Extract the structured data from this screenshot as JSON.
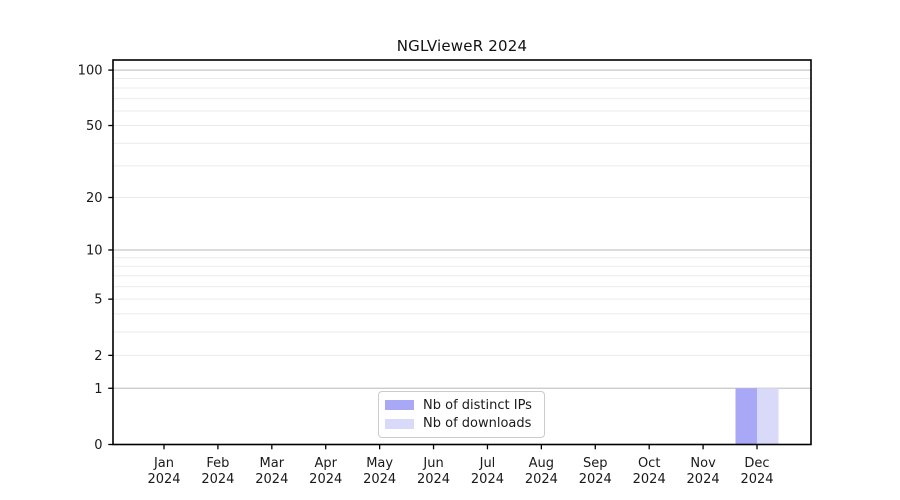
{
  "chart_data": {
    "type": "bar",
    "title": "NGLVieweR 2024",
    "categories": [
      "Jan 2024",
      "Feb 2024",
      "Mar 2024",
      "Apr 2024",
      "May 2024",
      "Jun 2024",
      "Jul 2024",
      "Aug 2024",
      "Sep 2024",
      "Oct 2024",
      "Nov 2024",
      "Dec 2024"
    ],
    "x_tick_labels": [
      {
        "month": "Jan",
        "year": "2024"
      },
      {
        "month": "Feb",
        "year": "2024"
      },
      {
        "month": "Mar",
        "year": "2024"
      },
      {
        "month": "Apr",
        "year": "2024"
      },
      {
        "month": "May",
        "year": "2024"
      },
      {
        "month": "Jun",
        "year": "2024"
      },
      {
        "month": "Jul",
        "year": "2024"
      },
      {
        "month": "Aug",
        "year": "2024"
      },
      {
        "month": "Sep",
        "year": "2024"
      },
      {
        "month": "Oct",
        "year": "2024"
      },
      {
        "month": "Nov",
        "year": "2024"
      },
      {
        "month": "Dec",
        "year": "2024"
      }
    ],
    "series": [
      {
        "name": "Nb of distinct IPs",
        "color": "#a8a8f6",
        "values": [
          0,
          0,
          0,
          0,
          0,
          0,
          0,
          0,
          0,
          0,
          0,
          1
        ]
      },
      {
        "name": "Nb of downloads",
        "color": "#d9d9f9",
        "values": [
          0,
          0,
          0,
          0,
          0,
          0,
          0,
          0,
          0,
          0,
          0,
          1
        ]
      }
    ],
    "yscale": "log1p",
    "ylim": [
      0,
      113
    ],
    "xlabel": "",
    "ylabel": "",
    "y_tick_labels": [
      "0",
      "1",
      "2",
      "5",
      "10",
      "20",
      "50",
      "100"
    ],
    "y_tick_values": [
      0,
      1,
      2,
      5,
      10,
      20,
      50,
      100
    ],
    "y_gridlines_decade": [
      1,
      10,
      100
    ],
    "y_gridlines_minor": [
      2,
      3,
      4,
      5,
      6,
      7,
      8,
      9,
      20,
      30,
      40,
      50,
      60,
      70,
      80,
      90
    ],
    "grid": "horizontal",
    "legend_position": "bottom-center"
  },
  "colors": {
    "background": "#ffffff",
    "frame": "#000000",
    "grid_major": "#c6c6c6",
    "grid_minor": "#ebebeb",
    "text": "#1a1a1a",
    "legend_border": "#cbcbcb"
  }
}
